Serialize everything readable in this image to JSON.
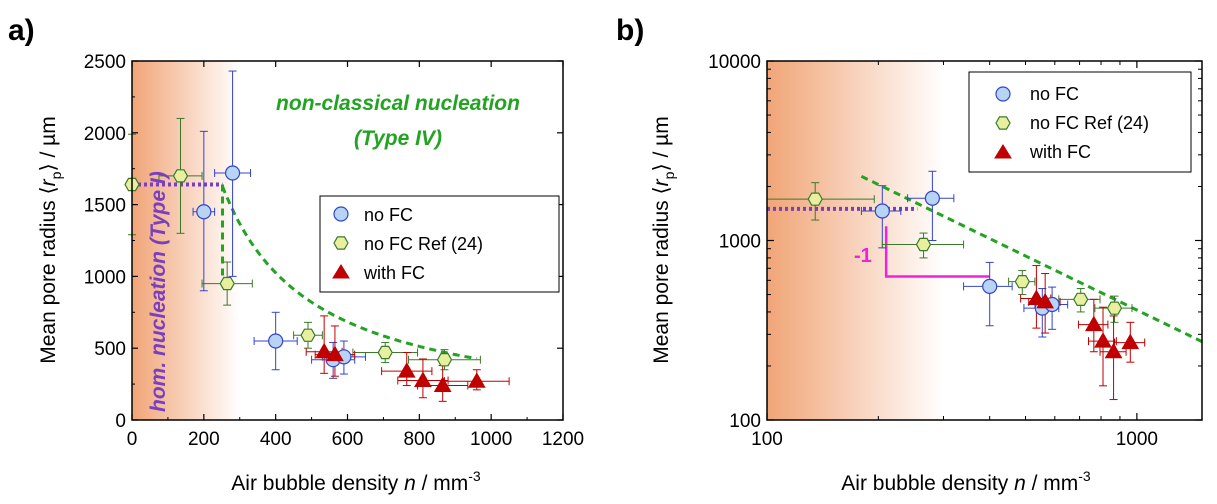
{
  "panels": [
    {
      "label": "a)",
      "xlabel_main": "Air bubble density ",
      "xlabel_var": "n",
      "xlabel_unit": " / mm",
      "xlabel_exp": "-3",
      "ylabel_main": "Mean pore radius ⟨",
      "ylabel_var": "r",
      "ylabel_sub": "p",
      "ylabel_unit": "⟩ / µm",
      "x_ticks": [
        "0",
        "200",
        "400",
        "600",
        "800",
        "1000",
        "1200"
      ],
      "y_ticks": [
        "0",
        "500",
        "1000",
        "1500",
        "2000",
        "2500"
      ],
      "annotation_classical_line1": "non-classical nucleation",
      "annotation_classical_line2": "(Type IV)",
      "annotation_hom": "hom. nucleation (Type I)",
      "legend": [
        "no FC",
        "no FC Ref (24)",
        "with FC"
      ]
    },
    {
      "label": "b)",
      "xlabel_main": "Air bubble density ",
      "xlabel_var": "n",
      "xlabel_unit": " / mm",
      "xlabel_exp": "-3",
      "ylabel_main": "Mean pore radius ⟨",
      "ylabel_var": "r",
      "ylabel_sub": "p",
      "ylabel_unit": "⟩ / µm",
      "x_ticks": [
        "100",
        "1000"
      ],
      "y_ticks": [
        "100",
        "1000",
        "10000"
      ],
      "slope_label": "-1",
      "legend": [
        "no FC",
        "no FC Ref (24)",
        "with FC"
      ]
    }
  ],
  "colors": {
    "no_fc_fill": "#b8d4f5",
    "no_fc_edge": "#3344cc",
    "ref_fill": "#e8f0a0",
    "ref_edge": "#3a7a2a",
    "fc_fill": "#c00000",
    "fc_edge": "#c00000",
    "fit_green": "#22a322",
    "plateau_purple": "#7a3fbf",
    "slope_magenta": "#ee22dd",
    "shade": "#f0a070"
  },
  "chart_data": [
    {
      "type": "scatter",
      "xlim": [
        0,
        1200
      ],
      "ylim": [
        0,
        2500
      ],
      "x_scale": "linear",
      "y_scale": "linear",
      "legend_position": "center-right",
      "series": [
        {
          "name": "no FC",
          "marker": "circle",
          "points": [
            {
              "x": 200,
              "y": 1450,
              "xerr": 30,
              "yerr_lo": 550,
              "yerr_hi": 560
            },
            {
              "x": 280,
              "y": 1720,
              "xerr": 50,
              "yerr_lo": 720,
              "yerr_hi": 710
            },
            {
              "x": 400,
              "y": 550,
              "xerr": 60,
              "yerr_lo": 200,
              "yerr_hi": 200
            },
            {
              "x": 560,
              "y": 420,
              "xerr": 60,
              "yerr_lo": 130,
              "yerr_hi": 120
            },
            {
              "x": 590,
              "y": 440,
              "xerr": 60,
              "yerr_lo": 120,
              "yerr_hi": 110
            }
          ]
        },
        {
          "name": "no FC Ref (24)",
          "marker": "hexagon",
          "points": [
            {
              "x": 0,
              "y": 1640,
              "xerr": 0,
              "yerr_lo": 350,
              "yerr_hi": 350
            },
            {
              "x": 135,
              "y": 1700,
              "xerr": 60,
              "yerr_lo": 400,
              "yerr_hi": 400
            },
            {
              "x": 265,
              "y": 950,
              "xerr": 70,
              "yerr_lo": 150,
              "yerr_hi": 150
            },
            {
              "x": 490,
              "y": 590,
              "xerr": 40,
              "yerr_lo": 90,
              "yerr_hi": 90
            },
            {
              "x": 705,
              "y": 470,
              "xerr": 90,
              "yerr_lo": 70,
              "yerr_hi": 70
            },
            {
              "x": 870,
              "y": 420,
              "xerr": 100,
              "yerr_lo": 70,
              "yerr_hi": 70
            }
          ]
        },
        {
          "name": "with FC",
          "marker": "triangle",
          "points": [
            {
              "x": 535,
              "y": 475,
              "xerr": 50,
              "yerr_lo": 150,
              "yerr_hi": 250
            },
            {
              "x": 565,
              "y": 455,
              "xerr": 55,
              "yerr_lo": 150,
              "yerr_hi": 200
            },
            {
              "x": 765,
              "y": 340,
              "xerr": 70,
              "yerr_lo": 100,
              "yerr_hi": 130
            },
            {
              "x": 810,
              "y": 275,
              "xerr": 70,
              "yerr_lo": 120,
              "yerr_hi": 150
            },
            {
              "x": 865,
              "y": 240,
              "xerr": 70,
              "yerr_lo": 110,
              "yerr_hi": 140
            },
            {
              "x": 960,
              "y": 270,
              "xerr": 90,
              "yerr_lo": 60,
              "yerr_hi": 80
            }
          ]
        }
      ],
      "fit_curve": {
        "style": "dashed",
        "color": "green",
        "equation": "y = 4.1e5 / x",
        "x_range": [
          252,
          960
        ]
      },
      "plateau": {
        "style": "dotted",
        "color": "purple",
        "y": 1640,
        "x_range": [
          0,
          252
        ],
        "drop_to_y": 960
      },
      "shaded_region": {
        "x_range": [
          0,
          300
        ]
      }
    },
    {
      "type": "scatter",
      "xlim": [
        100,
        1500
      ],
      "ylim": [
        100,
        10000
      ],
      "x_scale": "log",
      "y_scale": "log",
      "legend_position": "top-right",
      "series": [
        {
          "name": "no FC",
          "marker": "circle",
          "points": [
            {
              "x": 205,
              "y": 1460,
              "xerr_lo": 25,
              "xerr_hi": 25,
              "yerr_lo": 550,
              "yerr_hi": 560
            },
            {
              "x": 280,
              "y": 1720,
              "xerr_lo": 40,
              "xerr_hi": 40,
              "yerr_lo": 720,
              "yerr_hi": 710
            },
            {
              "x": 400,
              "y": 555,
              "xerr_lo": 60,
              "xerr_hi": 60,
              "yerr_lo": 220,
              "yerr_hi": 200
            },
            {
              "x": 555,
              "y": 420,
              "xerr_lo": 60,
              "xerr_hi": 60,
              "yerr_lo": 130,
              "yerr_hi": 120
            },
            {
              "x": 590,
              "y": 440,
              "xerr_lo": 60,
              "xerr_hi": 60,
              "yerr_lo": 120,
              "yerr_hi": 110
            }
          ]
        },
        {
          "name": "no FC Ref (24)",
          "marker": "hexagon",
          "points": [
            {
              "x": 135,
              "y": 1700,
              "xerr_lo": 35,
              "xerr_hi": 60,
              "yerr_lo": 400,
              "yerr_hi": 400
            },
            {
              "x": 265,
              "y": 950,
              "xerr_lo": 60,
              "xerr_hi": 75,
              "yerr_lo": 150,
              "yerr_hi": 150
            },
            {
              "x": 490,
              "y": 590,
              "xerr_lo": 40,
              "xerr_hi": 40,
              "yerr_lo": 90,
              "yerr_hi": 90
            },
            {
              "x": 705,
              "y": 470,
              "xerr_lo": 90,
              "xerr_hi": 90,
              "yerr_lo": 70,
              "yerr_hi": 70
            },
            {
              "x": 870,
              "y": 420,
              "xerr_lo": 100,
              "xerr_hi": 100,
              "yerr_lo": 70,
              "yerr_hi": 70
            }
          ]
        },
        {
          "name": "with FC",
          "marker": "triangle",
          "points": [
            {
              "x": 535,
              "y": 475,
              "xerr_lo": 50,
              "xerr_hi": 50,
              "yerr_lo": 150,
              "yerr_hi": 250
            },
            {
              "x": 565,
              "y": 455,
              "xerr_lo": 55,
              "xerr_hi": 55,
              "yerr_lo": 150,
              "yerr_hi": 200
            },
            {
              "x": 765,
              "y": 340,
              "xerr_lo": 70,
              "xerr_hi": 70,
              "yerr_lo": 100,
              "yerr_hi": 130
            },
            {
              "x": 810,
              "y": 275,
              "xerr_lo": 70,
              "xerr_hi": 70,
              "yerr_lo": 120,
              "yerr_hi": 150
            },
            {
              "x": 865,
              "y": 240,
              "xerr_lo": 70,
              "xerr_hi": 70,
              "yerr_lo": 110,
              "yerr_hi": 140
            },
            {
              "x": 960,
              "y": 270,
              "xerr_lo": 90,
              "xerr_hi": 90,
              "yerr_lo": 60,
              "yerr_hi": 80
            }
          ]
        }
      ],
      "fit_curve": {
        "style": "dashed",
        "color": "green",
        "equation": "y = 4.1e5 / x",
        "x_range": [
          180,
          1500
        ]
      },
      "plateau": {
        "style": "dotted",
        "color": "purple",
        "y": 1500,
        "x_range": [
          100,
          255
        ]
      },
      "slope_triangle": {
        "color": "magenta",
        "label": "-1",
        "x_range": [
          210,
          400
        ],
        "y_range": [
          630,
          1200
        ]
      },
      "shaded_region": {
        "x_range": [
          100,
          300
        ]
      }
    }
  ]
}
